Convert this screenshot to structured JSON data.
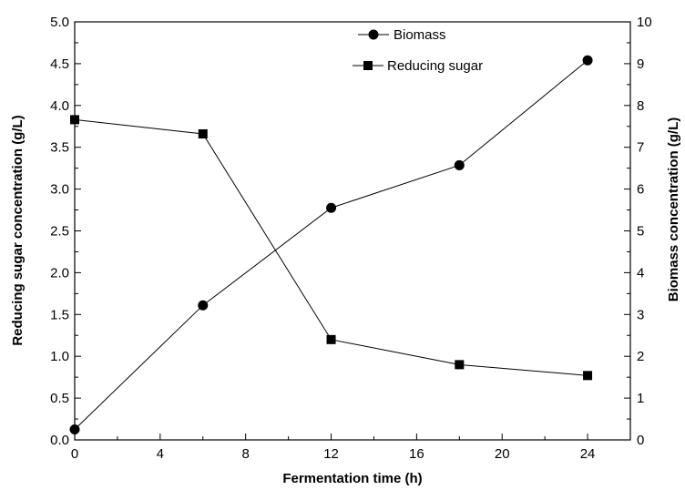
{
  "chart_data": {
    "type": "line",
    "x": [
      0,
      6,
      12,
      18,
      24
    ],
    "xlabel": "Fermentation time (h)",
    "xlim": [
      0,
      26
    ],
    "x_ticks": [
      "0",
      "4",
      "8",
      "12",
      "16",
      "20",
      "24"
    ],
    "ylabel_left": "Reducing sugar concentration (g/L)",
    "ylim_left": [
      0,
      5
    ],
    "y_left_ticks": [
      "0.0",
      "0.5",
      "1.0",
      "1.5",
      "2.0",
      "2.5",
      "3.0",
      "3.5",
      "4.0",
      "4.5",
      "5.0"
    ],
    "ylabel_right": "Biomass concentration (g/L)",
    "ylim_right": [
      0,
      10
    ],
    "y_right_ticks": [
      "0",
      "1",
      "2",
      "3",
      "4",
      "5",
      "6",
      "7",
      "8",
      "9",
      "10"
    ],
    "grid": false,
    "legend_position": "top-center",
    "series": [
      {
        "name": "Biomass",
        "axis": "right",
        "marker": "circle",
        "values": [
          0.25,
          3.22,
          5.55,
          6.57,
          9.08
        ]
      },
      {
        "name": "Reducing sugar",
        "axis": "left",
        "marker": "square",
        "values": [
          3.83,
          3.66,
          1.2,
          0.9,
          0.77
        ]
      }
    ]
  }
}
